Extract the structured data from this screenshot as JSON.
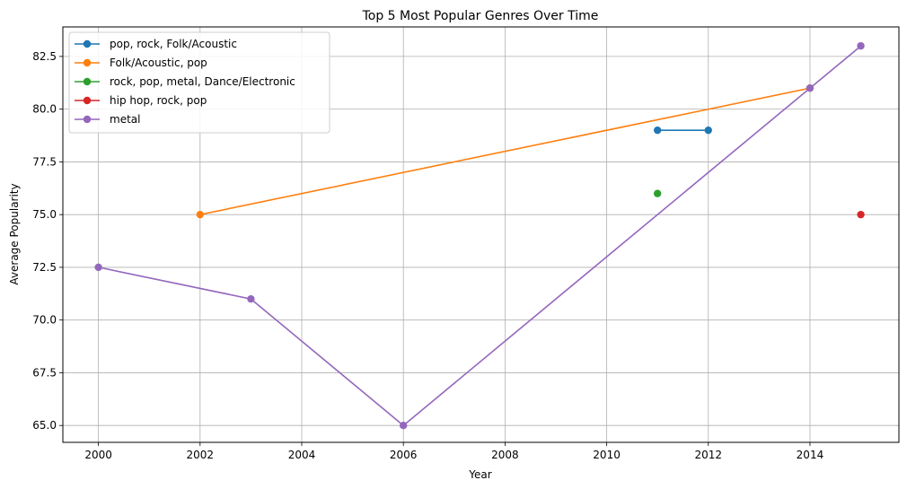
{
  "chart_data": {
    "type": "line",
    "title": "Top 5 Most Popular Genres Over Time",
    "xlabel": "Year",
    "ylabel": "Average Popularity",
    "xlim": [
      1999.3,
      2015.75
    ],
    "ylim": [
      64.2,
      83.9
    ],
    "xticks": [
      2000,
      2002,
      2004,
      2006,
      2008,
      2010,
      2012,
      2014
    ],
    "yticks": [
      65.0,
      67.5,
      70.0,
      72.5,
      75.0,
      77.5,
      80.0,
      82.5
    ],
    "ytick_labels": [
      "65.0",
      "67.5",
      "70.0",
      "72.5",
      "75.0",
      "77.5",
      "80.0",
      "82.5"
    ],
    "grid": true,
    "legend_position": "top-left",
    "series": [
      {
        "name": "pop, rock, Folk/Acoustic",
        "color": "#1f77b4",
        "points": [
          [
            2011,
            79.0
          ],
          [
            2012,
            79.0
          ]
        ]
      },
      {
        "name": "Folk/Acoustic, pop",
        "color": "#ff7f0e",
        "points": [
          [
            2002,
            75.0
          ],
          [
            2014,
            81.0
          ]
        ]
      },
      {
        "name": "rock, pop, metal, Dance/Electronic",
        "color": "#2ca02c",
        "points": [
          [
            2011,
            76.0
          ]
        ]
      },
      {
        "name": "hip hop, rock, pop",
        "color": "#d62728",
        "points": [
          [
            2015,
            75.0
          ]
        ]
      },
      {
        "name": "metal",
        "color": "#9467bd",
        "points": [
          [
            2000,
            72.5
          ],
          [
            2003,
            71.0
          ],
          [
            2006,
            65.0
          ],
          [
            2014,
            81.0
          ],
          [
            2015,
            83.0
          ]
        ]
      }
    ]
  }
}
